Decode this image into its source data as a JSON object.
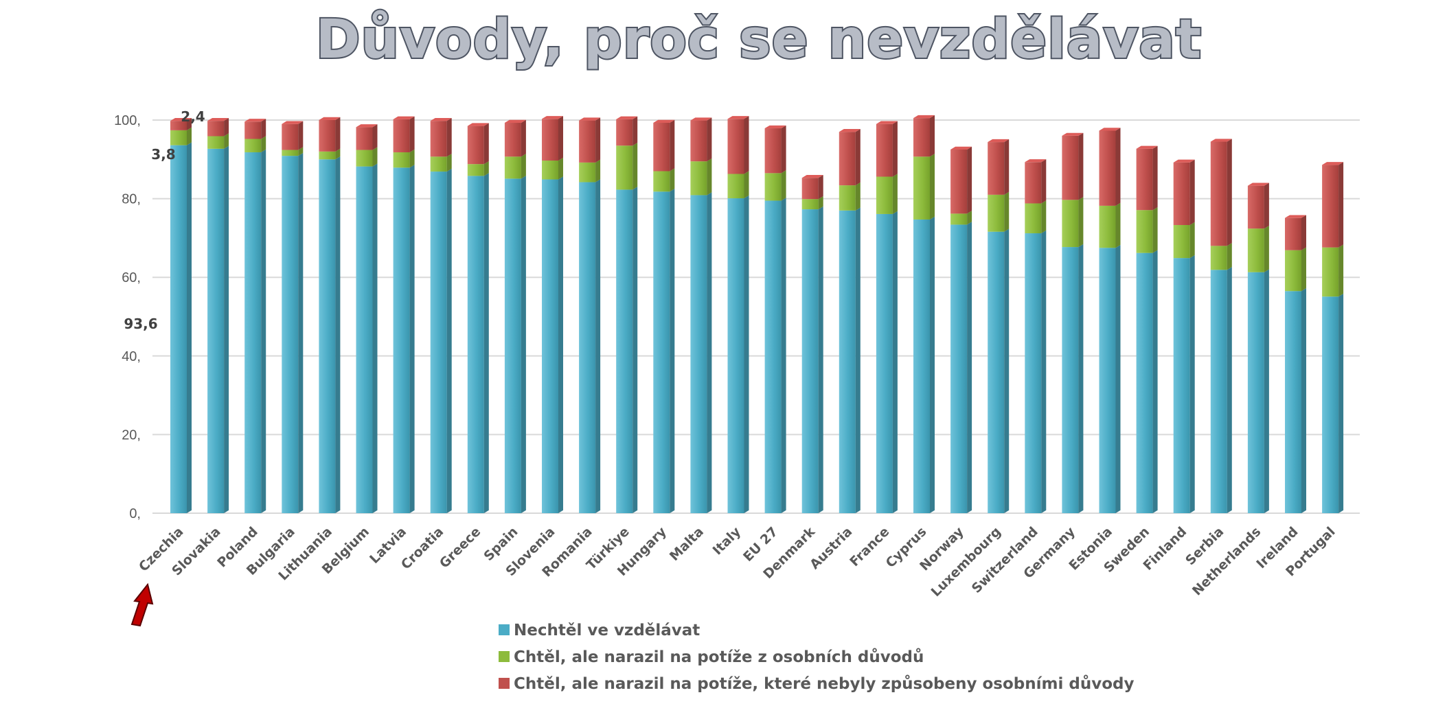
{
  "chart_data": {
    "type": "bar",
    "stacked": true,
    "title": "Důvody, proč se nevzdělávat",
    "xlabel": "",
    "ylabel": "",
    "ylim": [
      0,
      100
    ],
    "yticks": [
      0,
      20,
      40,
      60,
      80,
      100
    ],
    "ytick_labels": [
      "0,",
      "20,",
      "40,",
      "60,",
      "80,",
      "100,"
    ],
    "grid": true,
    "legend_position": "bottom",
    "categories": [
      "Czechia",
      "Slovakia",
      "Poland",
      "Bulgaria",
      "Lithuania",
      "Belgium",
      "Latvia",
      "Croatia",
      "Greece",
      "Spain",
      "Slovenia",
      "Romania",
      "Türkiye",
      "Hungary",
      "Malta",
      "Italy",
      "EU 27",
      "Denmark",
      "Austria",
      "France",
      "Cyprus",
      "Norway",
      "Luxembourg",
      "Switzerland",
      "Germany",
      "Estonia",
      "Sweden",
      "Finland",
      "Serbia",
      "Netherlands",
      "Ireland",
      "Portugal"
    ],
    "series": [
      {
        "name": "Nechtěl ve vzdělávat",
        "color": "#4bacc6",
        "values": [
          93.6,
          92.7,
          91.8,
          90.9,
          90.0,
          88.2,
          87.9,
          86.9,
          85.8,
          85.1,
          84.9,
          84.2,
          82.3,
          81.8,
          80.9,
          80.1,
          79.5,
          77.3,
          77.0,
          76.1,
          74.7,
          73.4,
          71.6,
          71.2,
          67.7,
          67.5,
          66.2,
          64.9,
          61.9,
          61.3,
          56.5,
          55.1
        ]
      },
      {
        "name": "Chtěl, ale narazil na potíže z osobních důvodů",
        "color": "#8dbb3c",
        "values": [
          3.8,
          3.2,
          3.4,
          1.5,
          2.0,
          4.2,
          3.9,
          3.8,
          3.0,
          5.6,
          4.8,
          5.0,
          11.2,
          5.2,
          8.6,
          6.2,
          7.0,
          2.6,
          6.4,
          9.5,
          16.0,
          2.8,
          9.4,
          7.6,
          12.0,
          10.7,
          10.9,
          8.4,
          6.1,
          11.1,
          10.4,
          12.5
        ]
      },
      {
        "name": "Chtěl, ale narazil na potíže, které nebyly způsobeny osobními důvody",
        "color": "#c0504d",
        "values": [
          2.4,
          3.9,
          4.4,
          6.6,
          8.0,
          5.8,
          8.4,
          9.1,
          9.7,
          8.6,
          10.6,
          10.7,
          6.7,
          12.3,
          10.4,
          14.0,
          11.4,
          5.4,
          13.6,
          13.4,
          9.8,
          16.3,
          13.4,
          10.5,
          16.3,
          19.1,
          15.6,
          15.9,
          26.5,
          10.9,
          8.2,
          21.0
        ]
      }
    ],
    "data_labels": [
      {
        "category": "Czechia",
        "series": 2,
        "text": "2,4"
      },
      {
        "category": "Czechia",
        "series": 1,
        "text": "3,8"
      },
      {
        "category": "Czechia",
        "series": 0,
        "text": "93,6"
      }
    ],
    "annotation": "red-arrow-pointing-to-Czechia"
  }
}
